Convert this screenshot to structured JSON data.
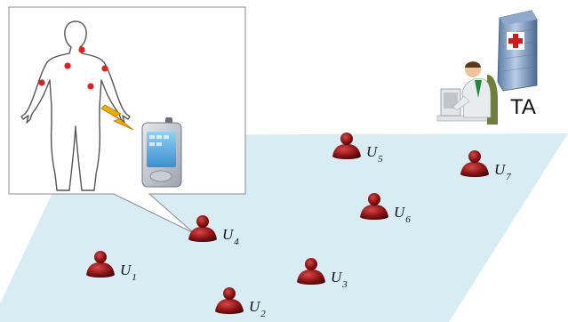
{
  "trusted_authority": {
    "label": "TA"
  },
  "users": [
    {
      "id": "U1",
      "letter": "U",
      "index": "1"
    },
    {
      "id": "U2",
      "letter": "U",
      "index": "2"
    },
    {
      "id": "U3",
      "letter": "U",
      "index": "3"
    },
    {
      "id": "U4",
      "letter": "U",
      "index": "4"
    },
    {
      "id": "U5",
      "letter": "U",
      "index": "5"
    },
    {
      "id": "U6",
      "letter": "U",
      "index": "6"
    },
    {
      "id": "U7",
      "letter": "U",
      "index": "7"
    }
  ],
  "colors": {
    "plane_fill": "#d8ecf3",
    "user_icon": "#8e1414",
    "sensor_dot": "#e02020",
    "lightning": "#f2a900"
  },
  "icons": [
    "person-outline-icon",
    "smartphone-icon",
    "lightning-icon",
    "hospital-building-icon",
    "operator-at-desk-icon",
    "user-icon"
  ]
}
